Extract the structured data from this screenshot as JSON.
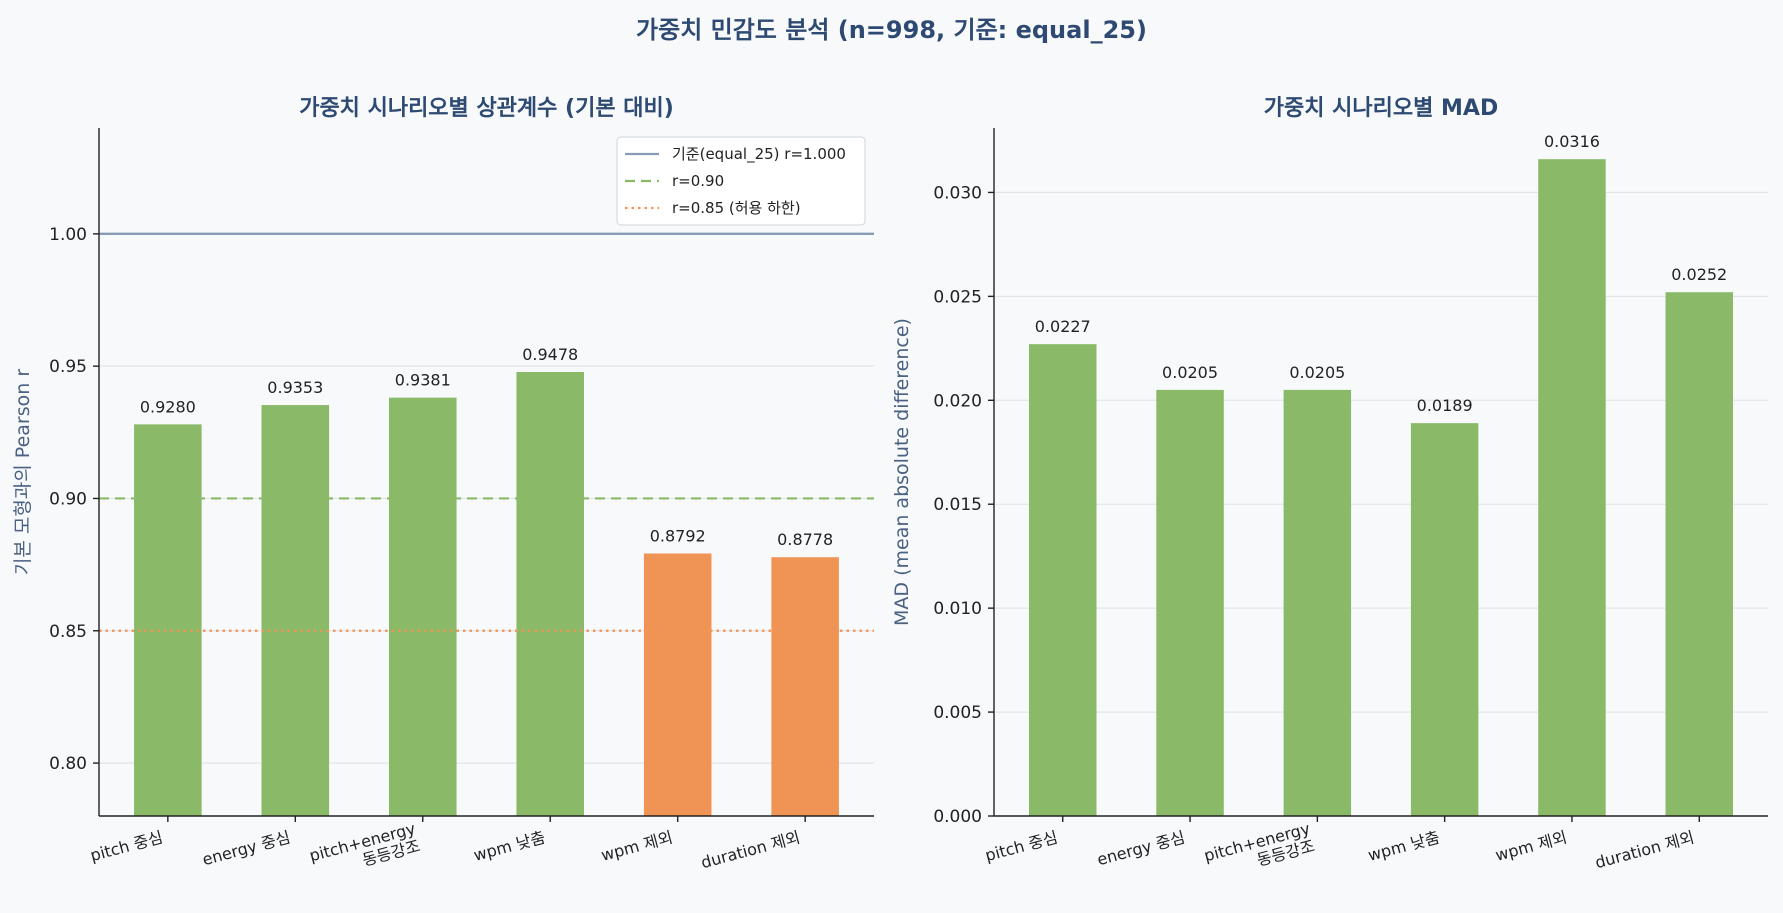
{
  "suptitle": "가중치 민감도 분석 (n=998, 기준: equal_25)",
  "chart_data": [
    {
      "type": "bar",
      "title": "가중치 시나리오별 상관계수 (기본 대비)",
      "xlabel": "",
      "ylabel": "기본 모형과의 Pearson r",
      "categories": [
        [
          "pitch 중심"
        ],
        [
          "energy 중심"
        ],
        [
          "pitch+energy",
          "동등강조"
        ],
        [
          "wpm 낮춤"
        ],
        [
          "wpm 제외"
        ],
        [
          "duration 제외"
        ]
      ],
      "values": [
        0.928,
        0.9353,
        0.9381,
        0.9478,
        0.8792,
        0.8778
      ],
      "value_labels": [
        "0.9280",
        "0.9353",
        "0.9381",
        "0.9478",
        "0.8792",
        "0.8778"
      ],
      "bar_colors": [
        "#8aba68",
        "#8aba68",
        "#8aba68",
        "#8aba68",
        "#ef9455",
        "#ef9455"
      ],
      "ylim": [
        0.78,
        1.04
      ],
      "yticks": [
        0.8,
        0.85,
        0.9,
        0.95,
        1.0
      ],
      "ytick_labels": [
        "0.80",
        "0.85",
        "0.90",
        "0.95",
        "1.00"
      ],
      "grid": true,
      "legend_position": "top-right",
      "reference_lines": [
        {
          "value": 1.0,
          "label": "기준(equal_25) r=1.000",
          "color": "#8a9bb5",
          "style": "solid"
        },
        {
          "value": 0.9,
          "label": "r=0.90",
          "color": "#8aba68",
          "style": "dashed"
        },
        {
          "value": 0.85,
          "label": "r=0.85 (허용 하한)",
          "color": "#ef9455",
          "style": "dotted"
        }
      ]
    },
    {
      "type": "bar",
      "title": "가중치 시나리오별 MAD",
      "xlabel": "",
      "ylabel": "MAD (mean absolute difference)",
      "categories": [
        [
          "pitch 중심"
        ],
        [
          "energy 중심"
        ],
        [
          "pitch+energy",
          "동등강조"
        ],
        [
          "wpm 낮춤"
        ],
        [
          "wpm 제외"
        ],
        [
          "duration 제외"
        ]
      ],
      "values": [
        0.0227,
        0.0205,
        0.0205,
        0.0189,
        0.0316,
        0.0252
      ],
      "value_labels": [
        "0.0227",
        "0.0205",
        "0.0205",
        "0.0189",
        "0.0316",
        "0.0252"
      ],
      "bar_colors": [
        "#8aba68",
        "#8aba68",
        "#8aba68",
        "#8aba68",
        "#8aba68",
        "#8aba68"
      ],
      "ylim": [
        0,
        0.0331
      ],
      "yticks": [
        0,
        0.005,
        0.01,
        0.015,
        0.02,
        0.025,
        0.03
      ],
      "ytick_labels": [
        "0.000",
        "0.005",
        "0.010",
        "0.015",
        "0.020",
        "0.025",
        "0.030"
      ],
      "grid": true
    }
  ]
}
